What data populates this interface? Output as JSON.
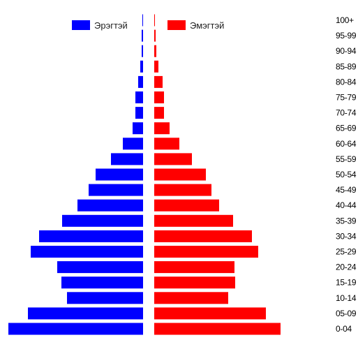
{
  "chart_data": {
    "type": "bar",
    "subtype": "population-pyramid",
    "orientation": "horizontal",
    "grid": false,
    "legend_position": "top",
    "categories": [
      "0-04",
      "05-09",
      "10-14",
      "15-19",
      "20-24",
      "25-29",
      "30-34",
      "35-39",
      "40-44",
      "45-49",
      "50-54",
      "55-59",
      "60-64",
      "65-69",
      "70-74",
      "75-79",
      "80-84",
      "85-89",
      "90-94",
      "95-99",
      "100+"
    ],
    "series": [
      {
        "name": "Эрэгтэй",
        "side": "left",
        "color": "#0000ff",
        "values": [
          193,
          165,
          109,
          117,
          123,
          161,
          149,
          116,
          94,
          78,
          68,
          46,
          29,
          15,
          11,
          11,
          7,
          4,
          2,
          2,
          1
        ]
      },
      {
        "name": "Эмэгтэй",
        "side": "right",
        "color": "#ff0000",
        "values": [
          181,
          160,
          106,
          116,
          115,
          149,
          140,
          113,
          93,
          82,
          74,
          54,
          36,
          22,
          14,
          14,
          12,
          6,
          3,
          2,
          1
        ]
      }
    ]
  }
}
